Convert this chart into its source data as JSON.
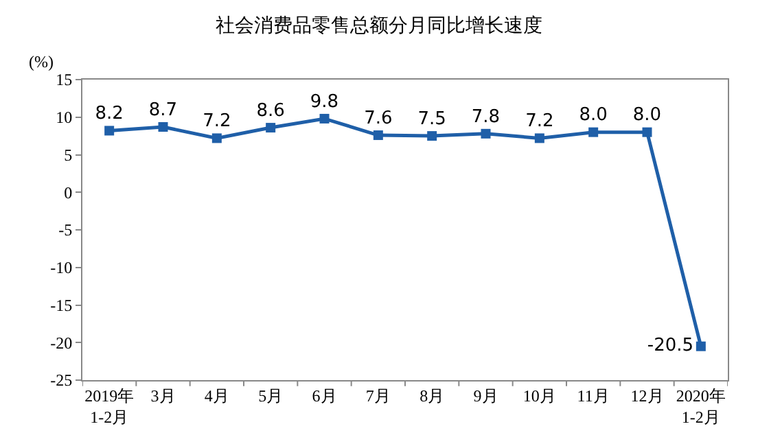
{
  "chart_data": {
    "type": "line",
    "title": "社会消费品零售总额分月同比增长速度",
    "ylabel": "(%)",
    "categories": [
      "2019年\n1-2月",
      "3月",
      "4月",
      "5月",
      "6月",
      "7月",
      "8月",
      "9月",
      "10月",
      "11月",
      "12月",
      "2020年\n1-2月"
    ],
    "series": [
      {
        "color": "#1f5fa8",
        "values": [
          8.2,
          8.7,
          7.2,
          8.6,
          9.8,
          7.6,
          7.5,
          7.8,
          7.2,
          8.0,
          8.0,
          -20.5
        ]
      }
    ],
    "value_labels": [
      "8.2",
      "8.7",
      "7.2",
      "8.6",
      "9.8",
      "7.6",
      "7.5",
      "7.8",
      "7.2",
      "8.0",
      "8.0",
      "-20.5"
    ],
    "ylim": [
      -25,
      15
    ],
    "yticks": [
      -25,
      -20,
      -15,
      -10,
      -5,
      0,
      5,
      10,
      15
    ],
    "grid": false,
    "marker": "square",
    "line_style": "solid"
  }
}
